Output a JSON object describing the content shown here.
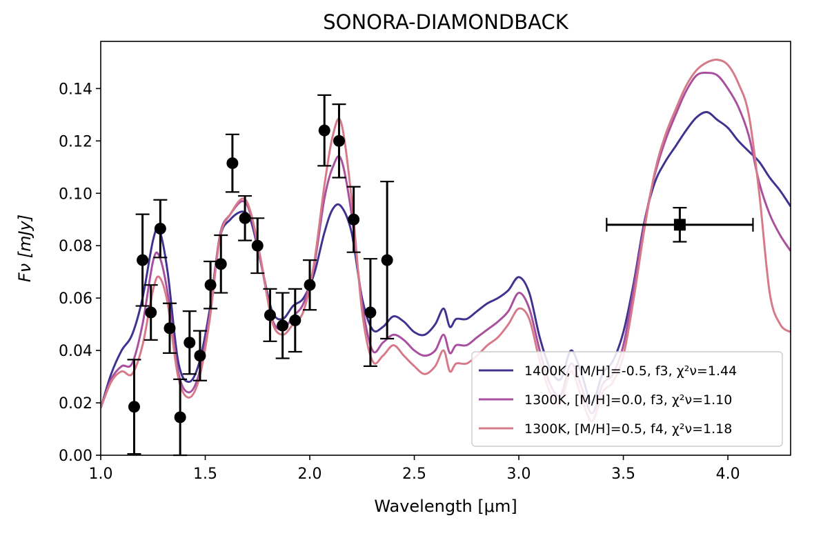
{
  "chart_data": {
    "type": "line",
    "title": "SONORA-DIAMONDBACK",
    "xlabel": "Wavelength [μm]",
    "ylabel": "Fν [mJy]",
    "xlim": [
      1.0,
      4.3
    ],
    "ylim": [
      0.0,
      0.158
    ],
    "xticks": [
      1.0,
      1.5,
      2.0,
      2.5,
      3.0,
      3.5,
      4.0
    ],
    "xtick_labels": [
      "1.0",
      "1.5",
      "2.0",
      "2.5",
      "3.0",
      "3.5",
      "4.0"
    ],
    "yticks": [
      0.0,
      0.02,
      0.04,
      0.06,
      0.08,
      0.1,
      0.12,
      0.14
    ],
    "ytick_labels": [
      "0.00",
      "0.02",
      "0.04",
      "0.06",
      "0.08",
      "0.10",
      "0.12",
      "0.14"
    ],
    "grid": false,
    "legend_position": "bottom-right",
    "series": [
      {
        "name": "1400K, [M/H]=-0.5, f3, χ²ν=1.44",
        "color": "#3f338f",
        "x": [
          1.0,
          1.05,
          1.1,
          1.15,
          1.2,
          1.25,
          1.28,
          1.32,
          1.37,
          1.42,
          1.47,
          1.52,
          1.57,
          1.62,
          1.68,
          1.72,
          1.77,
          1.82,
          1.87,
          1.92,
          1.97,
          2.02,
          2.07,
          2.11,
          2.15,
          2.2,
          2.25,
          2.3,
          2.35,
          2.4,
          2.45,
          2.5,
          2.55,
          2.6,
          2.64,
          2.67,
          2.7,
          2.75,
          2.8,
          2.85,
          2.9,
          2.95,
          3.0,
          3.05,
          3.1,
          3.15,
          3.2,
          3.25,
          3.3,
          3.35,
          3.4,
          3.45,
          3.5,
          3.55,
          3.6,
          3.65,
          3.7,
          3.75,
          3.8,
          3.85,
          3.9,
          3.95,
          4.0,
          4.05,
          4.1,
          4.15,
          4.2,
          4.25,
          4.3
        ],
        "y": [
          0.018,
          0.031,
          0.04,
          0.046,
          0.06,
          0.082,
          0.086,
          0.07,
          0.036,
          0.028,
          0.035,
          0.055,
          0.083,
          0.09,
          0.093,
          0.089,
          0.072,
          0.055,
          0.052,
          0.057,
          0.06,
          0.069,
          0.085,
          0.094,
          0.095,
          0.085,
          0.06,
          0.048,
          0.049,
          0.053,
          0.051,
          0.047,
          0.046,
          0.05,
          0.056,
          0.049,
          0.052,
          0.052,
          0.055,
          0.058,
          0.06,
          0.063,
          0.068,
          0.062,
          0.045,
          0.033,
          0.029,
          0.04,
          0.031,
          0.02,
          0.031,
          0.036,
          0.047,
          0.066,
          0.089,
          0.104,
          0.112,
          0.118,
          0.124,
          0.129,
          0.131,
          0.128,
          0.125,
          0.12,
          0.116,
          0.112,
          0.106,
          0.101,
          0.095
        ]
      },
      {
        "name": "1300K, [M/H]=0.0, f3, χ²ν=1.10",
        "color": "#a94f9f",
        "x": [
          1.0,
          1.05,
          1.1,
          1.15,
          1.2,
          1.25,
          1.28,
          1.32,
          1.37,
          1.42,
          1.47,
          1.52,
          1.57,
          1.62,
          1.68,
          1.72,
          1.77,
          1.82,
          1.87,
          1.92,
          1.97,
          2.02,
          2.07,
          2.11,
          2.15,
          2.2,
          2.25,
          2.3,
          2.35,
          2.4,
          2.45,
          2.5,
          2.55,
          2.6,
          2.64,
          2.67,
          2.7,
          2.75,
          2.8,
          2.85,
          2.9,
          2.95,
          3.0,
          3.05,
          3.1,
          3.15,
          3.2,
          3.25,
          3.3,
          3.35,
          3.4,
          3.45,
          3.5,
          3.55,
          3.6,
          3.65,
          3.7,
          3.75,
          3.8,
          3.85,
          3.9,
          3.95,
          4.0,
          4.05,
          4.1,
          4.15,
          4.2,
          4.25,
          4.3
        ],
        "y": [
          0.018,
          0.029,
          0.034,
          0.035,
          0.05,
          0.074,
          0.076,
          0.062,
          0.032,
          0.024,
          0.031,
          0.053,
          0.084,
          0.092,
          0.097,
          0.091,
          0.072,
          0.052,
          0.048,
          0.053,
          0.058,
          0.072,
          0.098,
          0.11,
          0.113,
          0.092,
          0.058,
          0.04,
          0.043,
          0.046,
          0.044,
          0.04,
          0.038,
          0.04,
          0.046,
          0.039,
          0.042,
          0.042,
          0.045,
          0.048,
          0.051,
          0.055,
          0.062,
          0.056,
          0.04,
          0.027,
          0.023,
          0.035,
          0.026,
          0.016,
          0.027,
          0.031,
          0.042,
          0.064,
          0.088,
          0.107,
          0.12,
          0.13,
          0.139,
          0.145,
          0.146,
          0.145,
          0.14,
          0.133,
          0.122,
          0.104,
          0.092,
          0.084,
          0.078
        ]
      },
      {
        "name": "1300K, [M/H]=0.5, f4, χ²ν=1.18",
        "color": "#d67a8a",
        "x": [
          1.0,
          1.05,
          1.1,
          1.15,
          1.2,
          1.25,
          1.28,
          1.32,
          1.37,
          1.42,
          1.47,
          1.52,
          1.57,
          1.62,
          1.68,
          1.72,
          1.77,
          1.82,
          1.87,
          1.92,
          1.97,
          2.02,
          2.07,
          2.11,
          2.15,
          2.2,
          2.25,
          2.3,
          2.35,
          2.4,
          2.45,
          2.5,
          2.55,
          2.6,
          2.64,
          2.67,
          2.7,
          2.75,
          2.8,
          2.85,
          2.9,
          2.95,
          3.0,
          3.05,
          3.1,
          3.15,
          3.2,
          3.25,
          3.3,
          3.35,
          3.4,
          3.45,
          3.5,
          3.55,
          3.6,
          3.65,
          3.7,
          3.75,
          3.8,
          3.85,
          3.9,
          3.95,
          4.0,
          4.05,
          4.1,
          4.15,
          4.2,
          4.25,
          4.3
        ],
        "y": [
          0.018,
          0.028,
          0.032,
          0.031,
          0.042,
          0.063,
          0.068,
          0.058,
          0.03,
          0.022,
          0.029,
          0.051,
          0.083,
          0.092,
          0.098,
          0.092,
          0.073,
          0.051,
          0.046,
          0.05,
          0.055,
          0.073,
          0.103,
          0.122,
          0.127,
          0.098,
          0.055,
          0.036,
          0.038,
          0.042,
          0.038,
          0.034,
          0.031,
          0.034,
          0.04,
          0.032,
          0.035,
          0.035,
          0.038,
          0.042,
          0.045,
          0.05,
          0.056,
          0.052,
          0.036,
          0.024,
          0.02,
          0.032,
          0.022,
          0.013,
          0.024,
          0.028,
          0.038,
          0.06,
          0.086,
          0.108,
          0.122,
          0.132,
          0.141,
          0.147,
          0.15,
          0.151,
          0.149,
          0.142,
          0.13,
          0.1,
          0.062,
          0.05,
          0.047
        ]
      }
    ],
    "observations": {
      "name": "photometry",
      "color": "#000000",
      "points": [
        {
          "x": 1.16,
          "y": 0.0185,
          "yerr": 0.018
        },
        {
          "x": 1.2,
          "y": 0.0745,
          "yerr": 0.0175
        },
        {
          "x": 1.24,
          "y": 0.0545,
          "yerr": 0.0105
        },
        {
          "x": 1.285,
          "y": 0.0865,
          "yerr": 0.011
        },
        {
          "x": 1.33,
          "y": 0.0485,
          "yerr": 0.0095
        },
        {
          "x": 1.38,
          "y": 0.0145,
          "yerr": 0.0145
        },
        {
          "x": 1.425,
          "y": 0.043,
          "yerr": 0.012
        },
        {
          "x": 1.475,
          "y": 0.038,
          "yerr": 0.0095
        },
        {
          "x": 1.525,
          "y": 0.065,
          "yerr": 0.009
        },
        {
          "x": 1.575,
          "y": 0.073,
          "yerr": 0.011
        },
        {
          "x": 1.63,
          "y": 0.1115,
          "yerr": 0.011
        },
        {
          "x": 1.69,
          "y": 0.0905,
          "yerr": 0.0085
        },
        {
          "x": 1.75,
          "y": 0.08,
          "yerr": 0.0105
        },
        {
          "x": 1.81,
          "y": 0.0535,
          "yerr": 0.01
        },
        {
          "x": 1.87,
          "y": 0.0495,
          "yerr": 0.0125
        },
        {
          "x": 1.93,
          "y": 0.0515,
          "yerr": 0.012
        },
        {
          "x": 2.0,
          "y": 0.065,
          "yerr": 0.0095
        },
        {
          "x": 2.07,
          "y": 0.124,
          "yerr": 0.0135
        },
        {
          "x": 2.14,
          "y": 0.12,
          "yerr": 0.014
        },
        {
          "x": 2.21,
          "y": 0.09,
          "yerr": 0.0125
        },
        {
          "x": 2.29,
          "y": 0.0545,
          "yerr": 0.0205
        },
        {
          "x": 2.37,
          "y": 0.0745,
          "yerr": 0.03
        }
      ]
    },
    "wide_band_point": {
      "name": "broadband",
      "marker": "square",
      "color": "#000000",
      "x": 3.77,
      "y": 0.088,
      "xerr": 0.35,
      "yerr": 0.0065
    }
  }
}
